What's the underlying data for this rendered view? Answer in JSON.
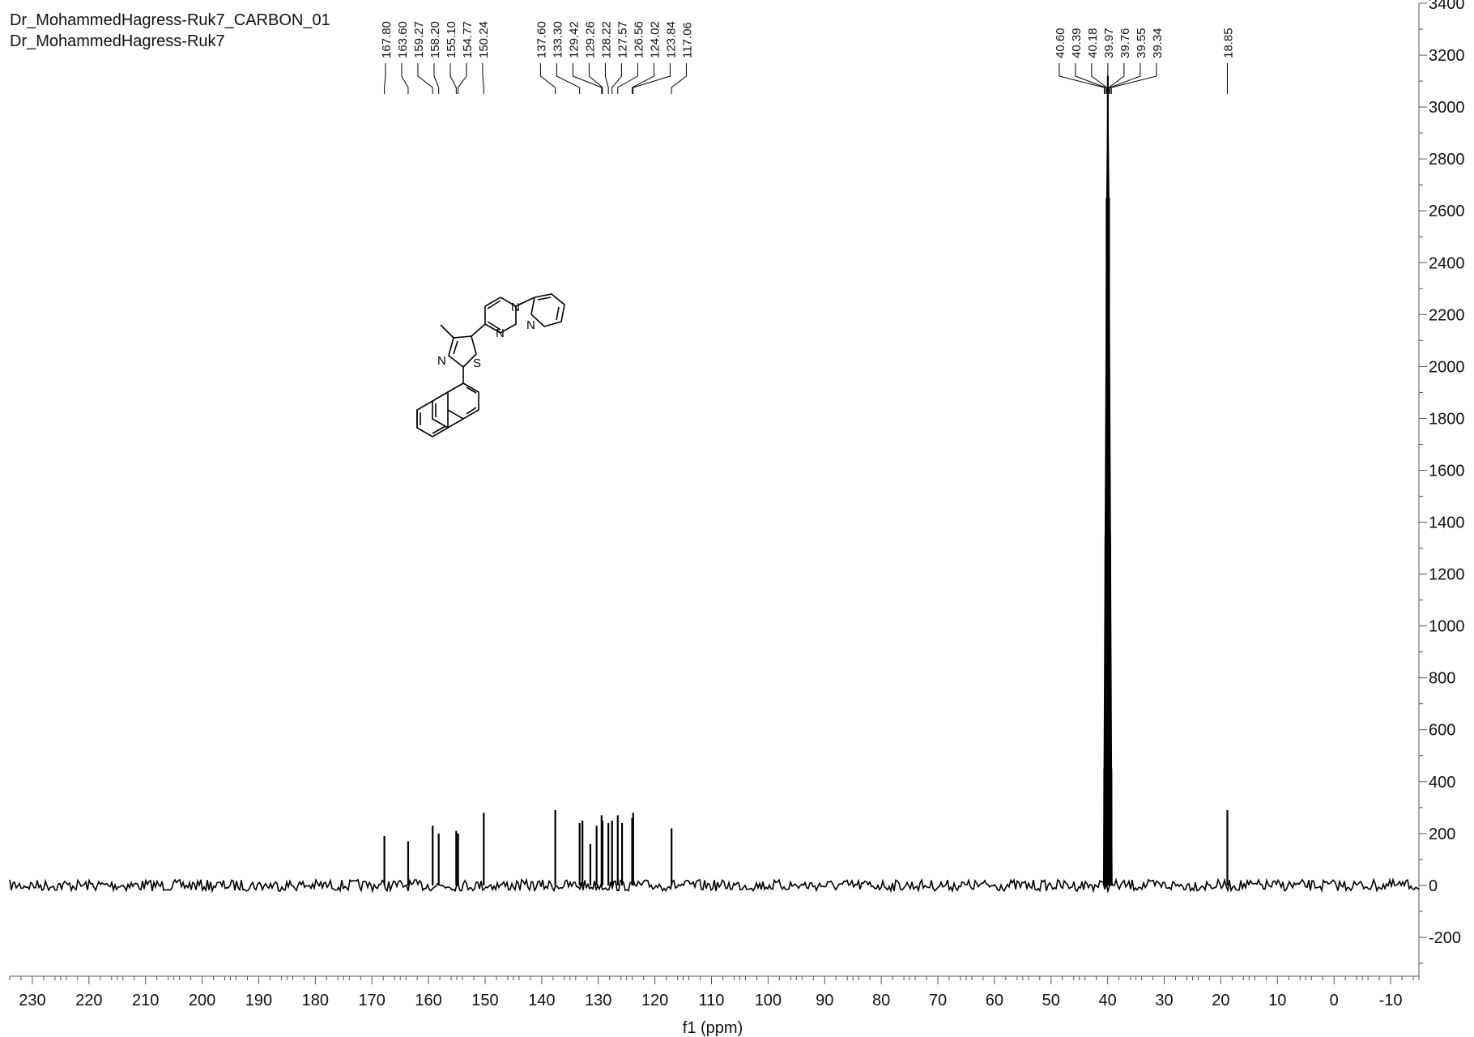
{
  "header": {
    "line1": "Dr_MohammedHagress-Ruk7_CARBON_01",
    "line2": "Dr_MohammedHagress-Ruk7"
  },
  "chart_data": {
    "type": "line",
    "xlabel": "f1 (ppm)",
    "ylabel": "",
    "xlim": [
      234,
      -15
    ],
    "ylim": [
      -350,
      3400
    ],
    "x_reversed": true,
    "x_ticks": [
      230,
      220,
      210,
      200,
      190,
      180,
      170,
      160,
      150,
      140,
      130,
      120,
      110,
      100,
      90,
      80,
      70,
      60,
      50,
      40,
      30,
      20,
      10,
      0,
      -10
    ],
    "y_ticks": [
      -200,
      0,
      200,
      400,
      600,
      800,
      1000,
      1200,
      1400,
      1600,
      1800,
      2000,
      2200,
      2400,
      2600,
      2800,
      3000,
      3200,
      3400
    ],
    "y_axis_side": "right",
    "peaks": [
      {
        "ppm": 167.8,
        "intensity": 190
      },
      {
        "ppm": 163.6,
        "intensity": 170
      },
      {
        "ppm": 159.27,
        "intensity": 230
      },
      {
        "ppm": 158.2,
        "intensity": 200
      },
      {
        "ppm": 155.1,
        "intensity": 210
      },
      {
        "ppm": 154.77,
        "intensity": 200
      },
      {
        "ppm": 150.24,
        "intensity": 280
      },
      {
        "ppm": 137.6,
        "intensity": 290
      },
      {
        "ppm": 133.3,
        "intensity": 240
      },
      {
        "ppm": 132.8,
        "intensity": 250
      },
      {
        "ppm": 131.4,
        "intensity": 160
      },
      {
        "ppm": 130.3,
        "intensity": 230
      },
      {
        "ppm": 129.42,
        "intensity": 270
      },
      {
        "ppm": 129.26,
        "intensity": 250
      },
      {
        "ppm": 128.22,
        "intensity": 240
      },
      {
        "ppm": 127.57,
        "intensity": 250
      },
      {
        "ppm": 126.56,
        "intensity": 270
      },
      {
        "ppm": 125.8,
        "intensity": 240
      },
      {
        "ppm": 124.02,
        "intensity": 260
      },
      {
        "ppm": 123.84,
        "intensity": 280
      },
      {
        "ppm": 117.06,
        "intensity": 220
      },
      {
        "ppm": 40.6,
        "intensity": 450
      },
      {
        "ppm": 40.39,
        "intensity": 1350
      },
      {
        "ppm": 40.18,
        "intensity": 2650
      },
      {
        "ppm": 39.97,
        "intensity": 3120
      },
      {
        "ppm": 39.76,
        "intensity": 2650
      },
      {
        "ppm": 39.55,
        "intensity": 1350
      },
      {
        "ppm": 39.34,
        "intensity": 450
      },
      {
        "ppm": 18.85,
        "intensity": 290
      }
    ],
    "peak_label_groups": [
      {
        "labels": [
          "167.80",
          "163.60",
          "159.27",
          "158.20",
          "155.10",
          "154.77",
          "150.24"
        ],
        "ppm": [
          167.8,
          163.6,
          159.27,
          158.2,
          155.1,
          154.77,
          150.24
        ]
      },
      {
        "labels": [
          "137.60",
          "133.30",
          "129.42",
          "129.26",
          "128.22",
          "127.57",
          "126.56",
          "124.02",
          "123.84",
          "117.06"
        ],
        "ppm": [
          137.6,
          133.3,
          129.42,
          129.26,
          128.22,
          127.57,
          126.56,
          124.02,
          123.84,
          117.06
        ]
      },
      {
        "labels": [
          "40.60",
          "40.39",
          "40.18",
          "39.97",
          "39.76",
          "39.55",
          "39.34"
        ],
        "ppm": [
          40.6,
          40.39,
          40.18,
          39.97,
          39.76,
          39.55,
          39.34
        ]
      },
      {
        "labels": [
          "18.85"
        ],
        "ppm": [
          18.85
        ]
      }
    ]
  },
  "structure": {
    "atom_labels": [
      "N",
      "N",
      "N",
      "N",
      "S"
    ]
  },
  "colors": {
    "spectrum": "#000000",
    "axis": "#555555",
    "background": "#ffffff"
  }
}
